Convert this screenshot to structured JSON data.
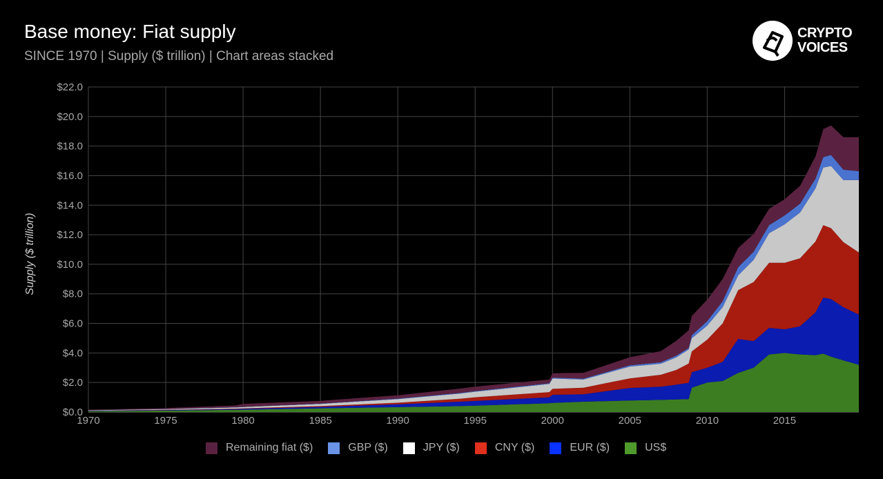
{
  "header": {
    "title": "Base money: Fiat supply",
    "subtitle": "SINCE 1970 | Supply ($ trillion) | Chart areas stacked"
  },
  "logo": {
    "line1": "CRYPTO",
    "line2": "VOICES"
  },
  "colors": {
    "background": "#000000",
    "grid": "#444444",
    "remaining": "#5a2240",
    "gbp": "#4a73d0",
    "jpy": "#c8c8c8",
    "cny": "#a81c10",
    "eur": "#0b1cb0",
    "usd": "#3c7d22"
  },
  "chart_data": {
    "type": "area",
    "stacked": true,
    "ylabel": "Supply ($ trillion)",
    "xlim": [
      1970,
      2019.8
    ],
    "ylim": [
      0,
      22
    ],
    "y_ticks": [
      "$0.0",
      "$2.0",
      "$4.0",
      "$6.0",
      "$8.0",
      "$10.0",
      "$12.0",
      "$14.0",
      "$16.0",
      "$18.0",
      "$20.0",
      "$22.0"
    ],
    "x_ticks": [
      "1970",
      "1975",
      "1980",
      "1985",
      "1990",
      "1995",
      "2000",
      "2005",
      "2010",
      "2015"
    ],
    "x": [
      1970,
      1975,
      1979.5,
      1980,
      1985,
      1986,
      1990,
      1994,
      1995,
      1999.8,
      2000,
      2002,
      2005,
      2007,
      2008,
      2008.8,
      2009,
      2010,
      2011,
      2012,
      2013,
      2014,
      2015,
      2016,
      2017,
      2017.5,
      2018,
      2018.8,
      2019.8
    ],
    "series": [
      {
        "name": "US$",
        "color_key": "usd",
        "values": [
          0.06,
          0.1,
          0.15,
          0.16,
          0.25,
          0.27,
          0.33,
          0.4,
          0.43,
          0.6,
          0.62,
          0.7,
          0.78,
          0.82,
          0.85,
          0.88,
          1.65,
          2.0,
          2.1,
          2.65,
          3.0,
          3.9,
          4.0,
          3.9,
          3.85,
          3.95,
          3.75,
          3.5,
          3.2
        ]
      },
      {
        "name": "EUR ($)",
        "color_key": "eur",
        "values": [
          0.02,
          0.03,
          0.05,
          0.06,
          0.1,
          0.12,
          0.2,
          0.3,
          0.32,
          0.4,
          0.55,
          0.5,
          0.85,
          0.9,
          1.0,
          1.1,
          1.05,
          1.0,
          1.3,
          2.3,
          1.8,
          1.8,
          1.6,
          1.9,
          2.9,
          3.8,
          3.9,
          3.6,
          3.4
        ]
      },
      {
        "name": "CNY ($)",
        "color_key": "cny",
        "values": [
          0.01,
          0.02,
          0.03,
          0.03,
          0.05,
          0.06,
          0.1,
          0.2,
          0.25,
          0.35,
          0.4,
          0.45,
          0.65,
          0.8,
          1.0,
          1.3,
          1.4,
          1.9,
          2.6,
          3.3,
          4.0,
          4.4,
          4.5,
          4.6,
          4.8,
          4.9,
          4.8,
          4.4,
          4.2
        ]
      },
      {
        "name": "JPY ($)",
        "color_key": "jpy",
        "values": [
          0.03,
          0.05,
          0.08,
          0.09,
          0.15,
          0.17,
          0.25,
          0.35,
          0.38,
          0.55,
          0.7,
          0.55,
          0.8,
          0.75,
          0.85,
          0.95,
          0.9,
          0.95,
          1.1,
          1.0,
          1.5,
          2.0,
          2.6,
          3.1,
          3.6,
          3.9,
          4.2,
          4.2,
          4.9
        ]
      },
      {
        "name": "GBP ($)",
        "color_key": "gbp",
        "values": [
          0.005,
          0.01,
          0.015,
          0.015,
          0.02,
          0.02,
          0.03,
          0.04,
          0.04,
          0.05,
          0.06,
          0.06,
          0.08,
          0.1,
          0.12,
          0.1,
          0.2,
          0.3,
          0.4,
          0.55,
          0.55,
          0.55,
          0.6,
          0.6,
          0.65,
          0.7,
          0.75,
          0.7,
          0.6
        ]
      },
      {
        "name": "Remaining fiat ($)",
        "color_key": "remaining",
        "values": [
          0.03,
          0.06,
          0.12,
          0.2,
          0.18,
          0.2,
          0.22,
          0.3,
          0.3,
          0.25,
          0.3,
          0.4,
          0.55,
          0.75,
          1.0,
          1.2,
          1.3,
          1.45,
          1.5,
          1.3,
          1.2,
          1.1,
          1.1,
          1.2,
          1.5,
          1.9,
          2.0,
          2.2,
          2.3
        ]
      }
    ],
    "legend": [
      "Remaining fiat ($)",
      "GBP ($)",
      "JPY ($)",
      "CNY ($)",
      "EUR ($)",
      "US$"
    ],
    "legend_position": "bottom",
    "grid": true
  }
}
